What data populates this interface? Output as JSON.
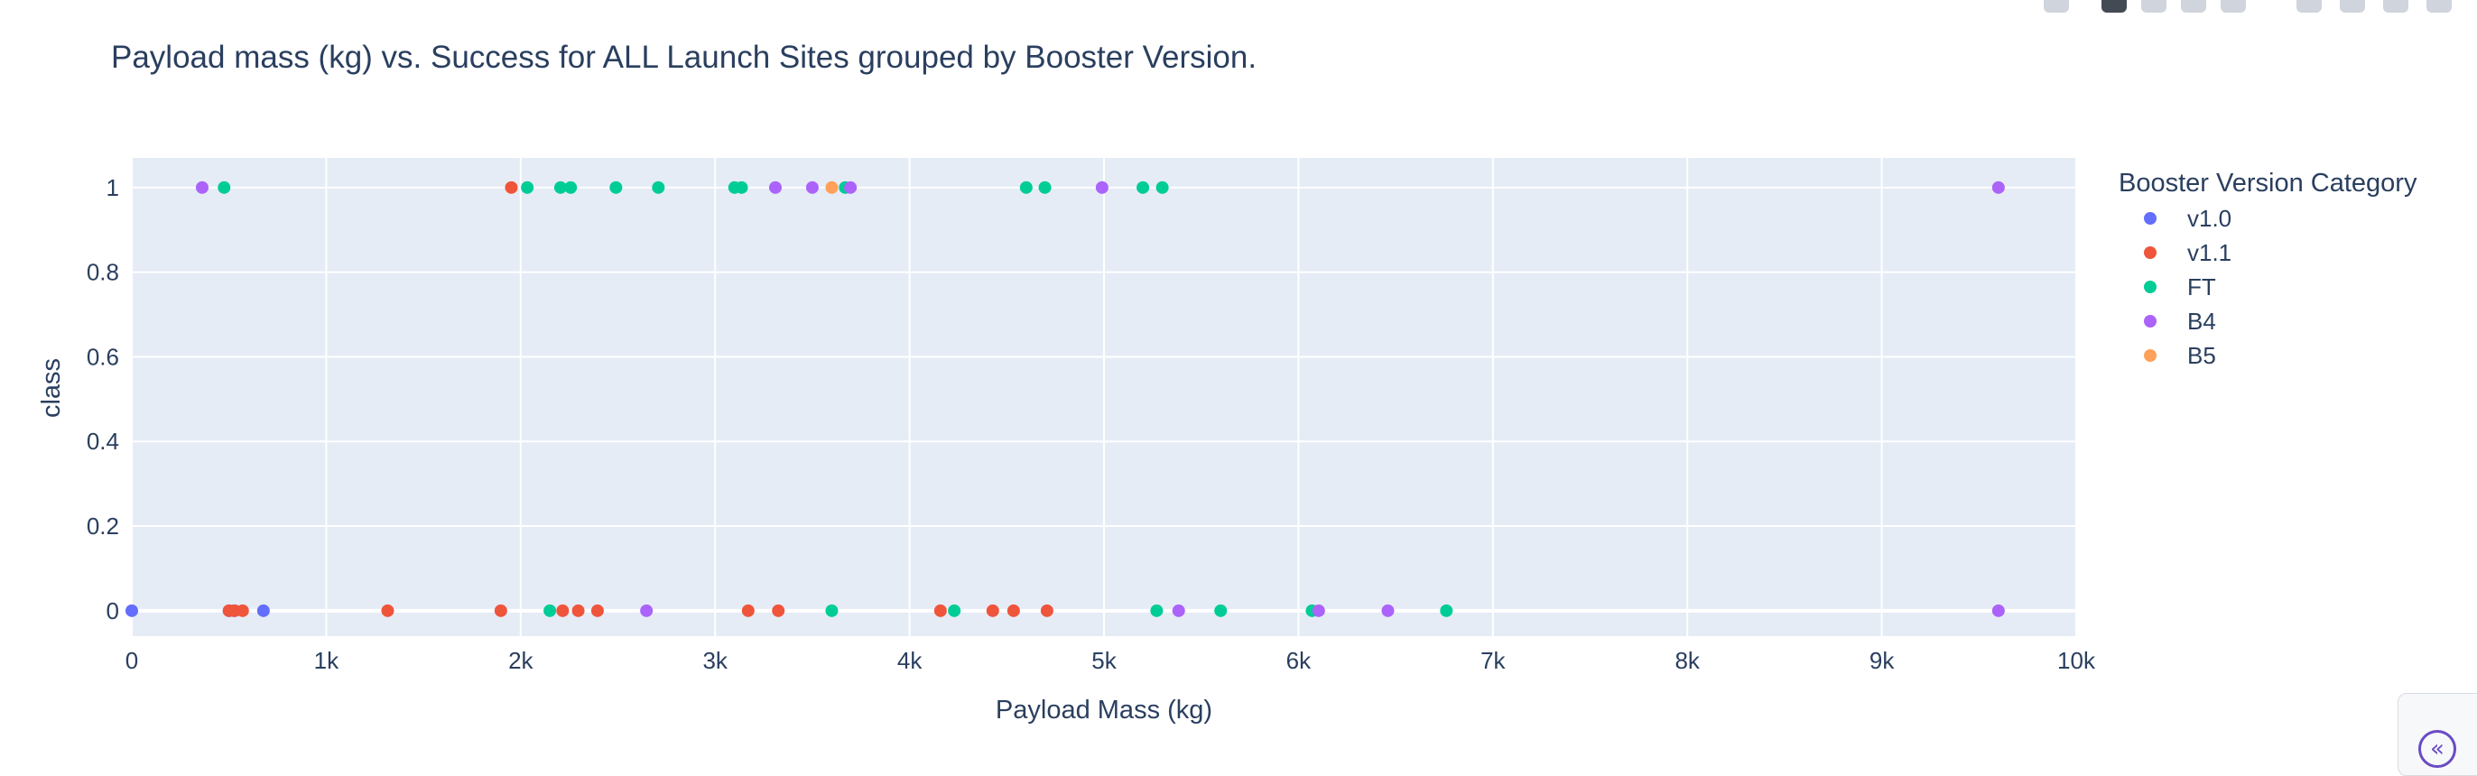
{
  "chart_data": {
    "type": "scatter",
    "title": "Payload mass (kg) vs. Success for ALL Launch Sites grouped by Booster Version.",
    "xlabel": "Payload Mass (kg)",
    "ylabel": "class",
    "xlim": [
      0,
      10000
    ],
    "ylim": [
      -0.06,
      1.07
    ],
    "x_ticks": [
      0,
      1000,
      2000,
      3000,
      4000,
      5000,
      6000,
      7000,
      8000,
      9000,
      10000
    ],
    "x_tick_labels": [
      "0",
      "1k",
      "2k",
      "3k",
      "4k",
      "5k",
      "6k",
      "7k",
      "8k",
      "9k",
      "10k"
    ],
    "y_ticks": [
      0,
      0.2,
      0.4,
      0.6,
      0.8,
      1
    ],
    "y_tick_labels": [
      "0",
      "0.2",
      "0.4",
      "0.6",
      "0.8",
      "1"
    ],
    "grid": true,
    "legend_title": "Booster Version Category",
    "legend_position": "right",
    "series": [
      {
        "name": "v1.0",
        "color": "#636efa",
        "x": [
          0,
          525,
          677,
          500
        ],
        "y": [
          0,
          0,
          0,
          0
        ]
      },
      {
        "name": "v1.1",
        "color": "#ef553b",
        "x": [
          1952,
          500,
          530,
          570,
          1316,
          1898,
          2216,
          2296,
          2395,
          3170,
          3325,
          4159,
          4428,
          4535,
          4707
        ],
        "y": [
          1,
          0,
          0,
          0,
          0,
          0,
          0,
          0,
          0,
          0,
          0,
          0,
          0,
          0,
          0
        ]
      },
      {
        "name": "FT",
        "color": "#00cc96",
        "x": [
          475,
          2034,
          2205,
          2257,
          2490,
          2708,
          3100,
          3136,
          3669,
          4600,
          4696,
          5200,
          5300,
          2150,
          3600,
          4230,
          5271,
          5600,
          6070,
          6761
        ],
        "y": [
          1,
          1,
          1,
          1,
          1,
          1,
          1,
          1,
          1,
          1,
          1,
          1,
          1,
          0,
          0,
          0,
          0,
          0,
          0,
          0
        ]
      },
      {
        "name": "B4",
        "color": "#ab63fa",
        "x": [
          362,
          3310,
          3500,
          3696,
          4990,
          9600,
          2647,
          5384,
          6104,
          6460,
          9600
        ],
        "y": [
          1,
          1,
          1,
          1,
          1,
          1,
          0,
          0,
          0,
          0,
          0
        ]
      },
      {
        "name": "B5",
        "color": "#ffa15a",
        "x": [
          3600
        ],
        "y": [
          1
        ]
      }
    ]
  }
}
